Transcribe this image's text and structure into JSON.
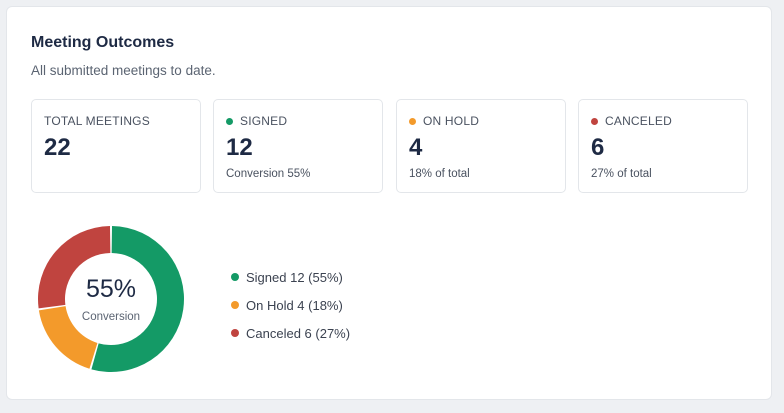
{
  "header": {
    "title": "Meeting Outcomes",
    "subtitle": "All submitted meetings to date."
  },
  "colors": {
    "signed": "#149a66",
    "on_hold": "#f39a2b",
    "canceled": "#c0443f"
  },
  "stats": [
    {
      "label": "TOTAL MEETINGS",
      "value": "22",
      "note": ""
    },
    {
      "label": "SIGNED",
      "value": "12",
      "note": "Conversion 55%",
      "color_key": "signed"
    },
    {
      "label": "ON HOLD",
      "value": "4",
      "note": "18% of total",
      "color_key": "on_hold"
    },
    {
      "label": "CANCELED",
      "value": "6",
      "note": "27% of total",
      "color_key": "canceled"
    }
  ],
  "donut": {
    "center_value": "55%",
    "center_caption": "Conversion"
  },
  "legend": [
    {
      "label": "Signed 12 (55%)",
      "color_key": "signed"
    },
    {
      "label": "On Hold 4 (18%)",
      "color_key": "on_hold"
    },
    {
      "label": "Canceled 6 (27%)",
      "color_key": "canceled"
    }
  ],
  "chart_data": {
    "type": "pie",
    "categories": [
      "Signed",
      "On Hold",
      "Canceled"
    ],
    "values": [
      12,
      4,
      6
    ],
    "colors": [
      "#149a66",
      "#f39a2b",
      "#c0443f"
    ]
  }
}
